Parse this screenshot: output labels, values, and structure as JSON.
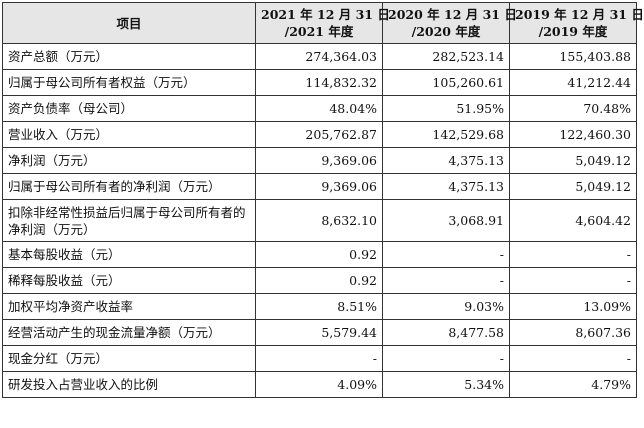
{
  "table": {
    "header": {
      "item": "项目",
      "cols": [
        {
          "line1": "2021 年 12 月 31 日",
          "line2": "/2021 年度"
        },
        {
          "line1": "2020 年 12 月 31 日",
          "line2": "/2020 年度"
        },
        {
          "line1": "2019 年 12 月 31 日",
          "line2": "/2019 年度"
        }
      ]
    },
    "rows": [
      {
        "label": "资产总额（万元）",
        "v2021": "274,364.03",
        "v2020": "282,523.14",
        "v2019": "155,403.88"
      },
      {
        "label": "归属于母公司所有者权益（万元）",
        "v2021": "114,832.32",
        "v2020": "105,260.61",
        "v2019": "41,212.44"
      },
      {
        "label": "资产负债率（母公司）",
        "v2021": "48.04%",
        "v2020": "51.95%",
        "v2019": "70.48%"
      },
      {
        "label": "营业收入（万元）",
        "v2021": "205,762.87",
        "v2020": "142,529.68",
        "v2019": "122,460.30"
      },
      {
        "label": "净利润（万元）",
        "v2021": "9,369.06",
        "v2020": "4,375.13",
        "v2019": "5,049.12"
      },
      {
        "label": "归属于母公司所有者的净利润（万元）",
        "v2021": "9,369.06",
        "v2020": "4,375.13",
        "v2019": "5,049.12"
      },
      {
        "label": "扣除非经常性损益后归属于母公司所有者的净利润（万元）",
        "v2021": "8,632.10",
        "v2020": "3,068.91",
        "v2019": "4,604.42"
      },
      {
        "label": "基本每股收益（元）",
        "v2021": "0.92",
        "v2020": "-",
        "v2019": "-"
      },
      {
        "label": "稀释每股收益（元）",
        "v2021": "0.92",
        "v2020": "-",
        "v2019": "-"
      },
      {
        "label": "加权平均净资产收益率",
        "v2021": "8.51%",
        "v2020": "9.03%",
        "v2019": "13.09%"
      },
      {
        "label": "经营活动产生的现金流量净额（万元）",
        "v2021": "5,579.44",
        "v2020": "8,477.58",
        "v2019": "8,607.36"
      },
      {
        "label": "现金分红（万元）",
        "v2021": "-",
        "v2020": "-",
        "v2019": "-"
      },
      {
        "label": "研发投入占营业收入的比例",
        "v2021": "4.09%",
        "v2020": "5.34%",
        "v2019": "4.79%"
      }
    ]
  }
}
